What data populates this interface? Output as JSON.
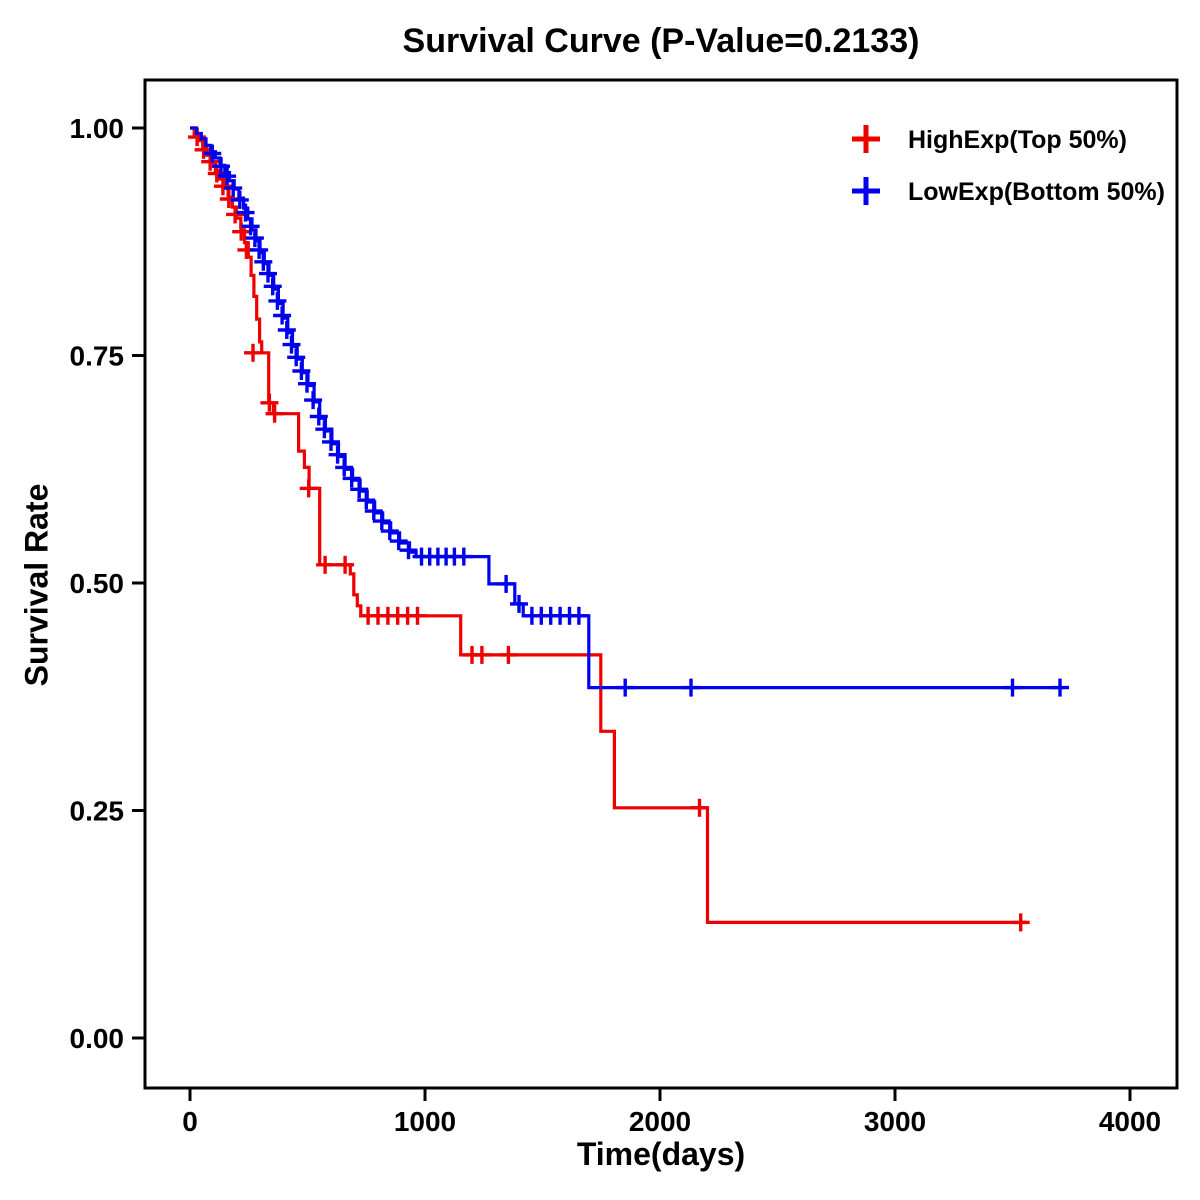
{
  "page": {
    "background": "#FFFFFF"
  },
  "chart_data": {
    "type": "line",
    "chart_style": "kaplan-meier-step-curve",
    "title": "Survival Curve (P-Value=0.2133)",
    "p_value": 0.2133,
    "xlabel": "Time(days)",
    "ylabel": "Survival Rate",
    "xlim": [
      -190,
      4190
    ],
    "ylim": [
      -0.053,
      1.053
    ],
    "xticks": [
      0,
      1000,
      2000,
      3000,
      4000
    ],
    "yticks": [
      0,
      0.25,
      0.5,
      0.75,
      1
    ],
    "grid": false,
    "legend_position": "top-right",
    "series": [
      {
        "name": "HighExp(Top 50%)",
        "color": "#EE0000",
        "steps": [
          [
            0,
            1.0
          ],
          [
            18,
            0.993
          ],
          [
            36,
            0.986
          ],
          [
            54,
            0.978
          ],
          [
            72,
            0.97
          ],
          [
            90,
            0.962
          ],
          [
            108,
            0.953
          ],
          [
            126,
            0.944
          ],
          [
            144,
            0.934
          ],
          [
            162,
            0.924
          ],
          [
            180,
            0.913
          ],
          [
            198,
            0.901
          ],
          [
            216,
            0.888
          ],
          [
            232,
            0.874
          ],
          [
            248,
            0.858
          ],
          [
            260,
            0.838
          ],
          [
            272,
            0.815
          ],
          [
            284,
            0.79
          ],
          [
            296,
            0.765
          ],
          [
            305,
            0.753
          ],
          [
            335,
            0.698
          ],
          [
            355,
            0.686
          ],
          [
            462,
            0.645
          ],
          [
            487,
            0.627
          ],
          [
            507,
            0.604
          ],
          [
            552,
            0.52
          ],
          [
            682,
            0.51
          ],
          [
            697,
            0.487
          ],
          [
            712,
            0.475
          ],
          [
            727,
            0.464
          ],
          [
            1152,
            0.421
          ],
          [
            1748,
            0.337
          ],
          [
            1806,
            0.253
          ],
          [
            2202,
            0.127
          ],
          [
            3560,
            0.127
          ]
        ],
        "censor_marks": [
          [
            30,
            0.99
          ],
          [
            58,
            0.976
          ],
          [
            86,
            0.963
          ],
          [
            114,
            0.95
          ],
          [
            140,
            0.936
          ],
          [
            165,
            0.922
          ],
          [
            192,
            0.905
          ],
          [
            218,
            0.886
          ],
          [
            240,
            0.866
          ],
          [
            268,
            0.753
          ],
          [
            338,
            0.698
          ],
          [
            360,
            0.686
          ],
          [
            505,
            0.604
          ],
          [
            575,
            0.52
          ],
          [
            660,
            0.52
          ],
          [
            758,
            0.464
          ],
          [
            800,
            0.464
          ],
          [
            842,
            0.464
          ],
          [
            884,
            0.464
          ],
          [
            926,
            0.464
          ],
          [
            968,
            0.464
          ],
          [
            1200,
            0.421
          ],
          [
            1242,
            0.421
          ],
          [
            1355,
            0.421
          ],
          [
            2168,
            0.253
          ],
          [
            3535,
            0.127
          ]
        ]
      },
      {
        "name": "LowExp(Bottom 50%)",
        "color": "#0000EE",
        "steps": [
          [
            0,
            1.0
          ],
          [
            28,
            0.994
          ],
          [
            48,
            0.988
          ],
          [
            68,
            0.981
          ],
          [
            88,
            0.974
          ],
          [
            108,
            0.967
          ],
          [
            128,
            0.959
          ],
          [
            148,
            0.951
          ],
          [
            168,
            0.942
          ],
          [
            188,
            0.933
          ],
          [
            208,
            0.923
          ],
          [
            228,
            0.912
          ],
          [
            246,
            0.9
          ],
          [
            264,
            0.888
          ],
          [
            281,
            0.876
          ],
          [
            298,
            0.863
          ],
          [
            316,
            0.851
          ],
          [
            336,
            0.838
          ],
          [
            356,
            0.823
          ],
          [
            376,
            0.807
          ],
          [
            396,
            0.791
          ],
          [
            416,
            0.775
          ],
          [
            436,
            0.76
          ],
          [
            456,
            0.746
          ],
          [
            478,
            0.731
          ],
          [
            502,
            0.717
          ],
          [
            528,
            0.699
          ],
          [
            552,
            0.681
          ],
          [
            576,
            0.667
          ],
          [
            604,
            0.653
          ],
          [
            632,
            0.639
          ],
          [
            660,
            0.625
          ],
          [
            692,
            0.613
          ],
          [
            724,
            0.601
          ],
          [
            754,
            0.589
          ],
          [
            786,
            0.577
          ],
          [
            820,
            0.566
          ],
          [
            854,
            0.555
          ],
          [
            892,
            0.544
          ],
          [
            934,
            0.534
          ],
          [
            962,
            0.529
          ],
          [
            1272,
            0.499
          ],
          [
            1382,
            0.477
          ],
          [
            1418,
            0.464
          ],
          [
            1697,
            0.385
          ],
          [
            3720,
            0.385
          ]
        ],
        "censor_marks": [
          [
            95,
            0.972
          ],
          [
            132,
            0.958
          ],
          [
            158,
            0.947
          ],
          [
            184,
            0.934
          ],
          [
            212,
            0.921
          ],
          [
            236,
            0.907
          ],
          [
            258,
            0.892
          ],
          [
            276,
            0.879
          ],
          [
            294,
            0.866
          ],
          [
            312,
            0.853
          ],
          [
            332,
            0.84
          ],
          [
            352,
            0.826
          ],
          [
            372,
            0.81
          ],
          [
            392,
            0.794
          ],
          [
            412,
            0.778
          ],
          [
            432,
            0.762
          ],
          [
            452,
            0.748
          ],
          [
            474,
            0.733
          ],
          [
            498,
            0.719
          ],
          [
            524,
            0.701
          ],
          [
            548,
            0.683
          ],
          [
            572,
            0.669
          ],
          [
            600,
            0.655
          ],
          [
            628,
            0.641
          ],
          [
            656,
            0.627
          ],
          [
            688,
            0.615
          ],
          [
            720,
            0.603
          ],
          [
            750,
            0.591
          ],
          [
            782,
            0.579
          ],
          [
            816,
            0.568
          ],
          [
            850,
            0.557
          ],
          [
            888,
            0.546
          ],
          [
            930,
            0.536
          ],
          [
            985,
            0.529
          ],
          [
            1020,
            0.529
          ],
          [
            1055,
            0.529
          ],
          [
            1090,
            0.529
          ],
          [
            1125,
            0.529
          ],
          [
            1165,
            0.529
          ],
          [
            1345,
            0.499
          ],
          [
            1400,
            0.477
          ],
          [
            1455,
            0.464
          ],
          [
            1495,
            0.464
          ],
          [
            1535,
            0.464
          ],
          [
            1575,
            0.464
          ],
          [
            1615,
            0.464
          ],
          [
            1655,
            0.464
          ],
          [
            1852,
            0.385
          ],
          [
            2132,
            0.385
          ],
          [
            3500,
            0.385
          ],
          [
            3702,
            0.385
          ]
        ]
      }
    ]
  }
}
